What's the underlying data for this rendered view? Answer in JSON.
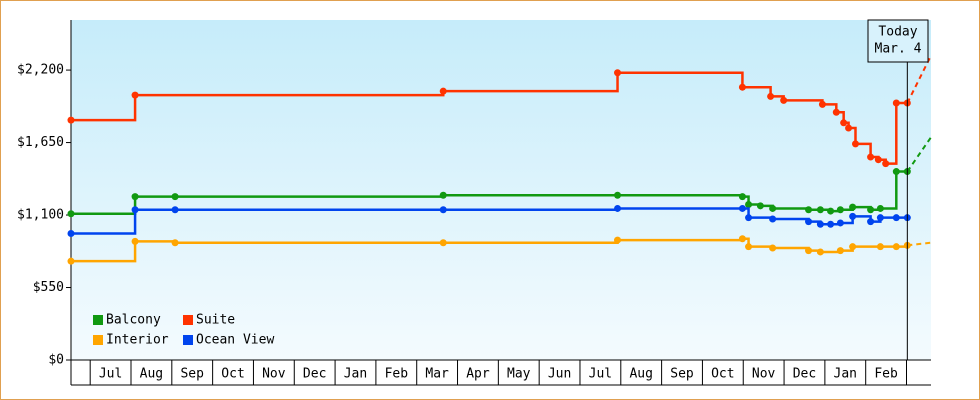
{
  "chart_data": {
    "type": "step-line",
    "xlim": [
      -0.47,
      20.6
    ],
    "ylim": [
      0,
      2580
    ],
    "yticks": [
      {
        "value": 0,
        "label": "$0"
      },
      {
        "value": 550,
        "label": "$550"
      },
      {
        "value": 1100,
        "label": "$1,100"
      },
      {
        "value": 1650,
        "label": "$1,650"
      },
      {
        "value": 2200,
        "label": "$2,200"
      }
    ],
    "xticks": [
      {
        "value": 0.5,
        "label": "Jul"
      },
      {
        "value": 1.5,
        "label": "Aug"
      },
      {
        "value": 2.5,
        "label": "Sep"
      },
      {
        "value": 3.5,
        "label": "Oct"
      },
      {
        "value": 4.5,
        "label": "Nov"
      },
      {
        "value": 5.5,
        "label": "Dec"
      },
      {
        "value": 6.5,
        "label": "Jan"
      },
      {
        "value": 7.5,
        "label": "Feb"
      },
      {
        "value": 8.5,
        "label": "Mar"
      },
      {
        "value": 9.5,
        "label": "Apr"
      },
      {
        "value": 10.5,
        "label": "May"
      },
      {
        "value": 11.5,
        "label": "Jun"
      },
      {
        "value": 12.5,
        "label": "Jul"
      },
      {
        "value": 13.5,
        "label": "Aug"
      },
      {
        "value": 14.5,
        "label": "Sep"
      },
      {
        "value": 15.5,
        "label": "Oct"
      },
      {
        "value": 16.5,
        "label": "Nov"
      },
      {
        "value": 17.5,
        "label": "Dec"
      },
      {
        "value": 18.5,
        "label": "Jan"
      },
      {
        "value": 19.5,
        "label": "Feb"
      }
    ],
    "today": {
      "label": [
        "Today",
        "Mar. 4"
      ],
      "x": 20.02
    },
    "series": [
      {
        "name": "Balcony",
        "color": "#119911",
        "x": [
          -0.47,
          1.1,
          2.08,
          8.65,
          12.92,
          15.98,
          16.13,
          16.42,
          16.72,
          17.6,
          17.89,
          18.14,
          18.38,
          18.68,
          19.12,
          19.36,
          19.75,
          20.02
        ],
        "values": [
          1110,
          1240,
          1240,
          1250,
          1250,
          1240,
          1180,
          1170,
          1150,
          1140,
          1140,
          1130,
          1140,
          1160,
          1140,
          1150,
          1430,
          1430
        ],
        "forecast": {
          "x": [
            20.02,
            20.6
          ],
          "values": [
            1430,
            1690
          ]
        }
      },
      {
        "name": "Suite",
        "color": "#ff3300",
        "x": [
          -0.47,
          1.1,
          8.65,
          12.92,
          15.98,
          16.67,
          16.99,
          17.94,
          18.28,
          18.46,
          18.58,
          18.75,
          19.12,
          19.31,
          19.49,
          19.75,
          20.02
        ],
        "values": [
          1820,
          2010,
          2040,
          2180,
          2070,
          2000,
          1970,
          1940,
          1880,
          1800,
          1760,
          1640,
          1540,
          1520,
          1490,
          1950,
          1950
        ],
        "forecast": {
          "x": [
            20.02,
            20.6
          ],
          "values": [
            1950,
            2310
          ]
        }
      },
      {
        "name": "Interior",
        "color": "#ffa500",
        "x": [
          -0.47,
          1.1,
          2.08,
          8.65,
          12.92,
          15.98,
          16.13,
          16.72,
          17.6,
          17.89,
          18.38,
          18.68,
          19.36,
          19.75,
          20.02
        ],
        "values": [
          750,
          900,
          890,
          890,
          910,
          920,
          860,
          850,
          830,
          820,
          830,
          860,
          860,
          860,
          870
        ],
        "forecast": {
          "x": [
            20.02,
            20.6
          ],
          "values": [
            870,
            890
          ]
        }
      },
      {
        "name": "Ocean View",
        "color": "#0044ee",
        "x": [
          -0.47,
          1.1,
          2.08,
          8.65,
          12.92,
          15.98,
          16.13,
          16.72,
          17.6,
          17.89,
          18.14,
          18.38,
          18.68,
          19.12,
          19.36,
          19.75,
          20.02
        ],
        "values": [
          960,
          1140,
          1140,
          1140,
          1150,
          1150,
          1080,
          1070,
          1050,
          1030,
          1030,
          1040,
          1090,
          1050,
          1080,
          1080,
          1080
        ]
      }
    ]
  }
}
